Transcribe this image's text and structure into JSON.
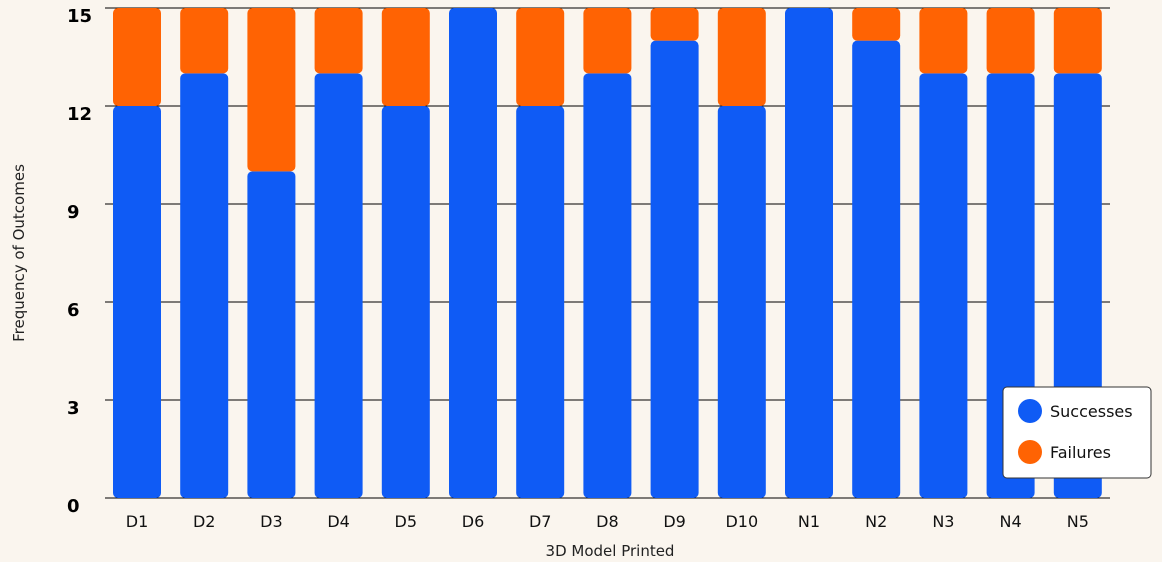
{
  "chart_data": {
    "type": "bar",
    "stacked": true,
    "categories": [
      "D1",
      "D2",
      "D3",
      "D4",
      "D5",
      "D6",
      "D7",
      "D8",
      "D9",
      "D10",
      "N1",
      "N2",
      "N3",
      "N4",
      "N5"
    ],
    "series": [
      {
        "name": "Successes",
        "values": [
          12,
          13,
          10,
          13,
          12,
          15,
          12,
          13,
          14,
          12,
          15,
          14,
          13,
          13,
          13
        ]
      },
      {
        "name": "Failures",
        "values": [
          3,
          2,
          5,
          2,
          3,
          0,
          3,
          2,
          1,
          3,
          0,
          1,
          2,
          2,
          2
        ]
      }
    ],
    "title": "",
    "xlabel": "3D Model Printed",
    "ylabel": "Frequency of Outcomes",
    "ylim": [
      0,
      15
    ],
    "yticks": [
      "0",
      "3",
      "6",
      "9",
      "12",
      "15"
    ],
    "grid": "horizontal",
    "legend_position": "bottom-right",
    "colors": {
      "Successes": "#0F5BF5",
      "Failures": "#FF6303"
    }
  }
}
